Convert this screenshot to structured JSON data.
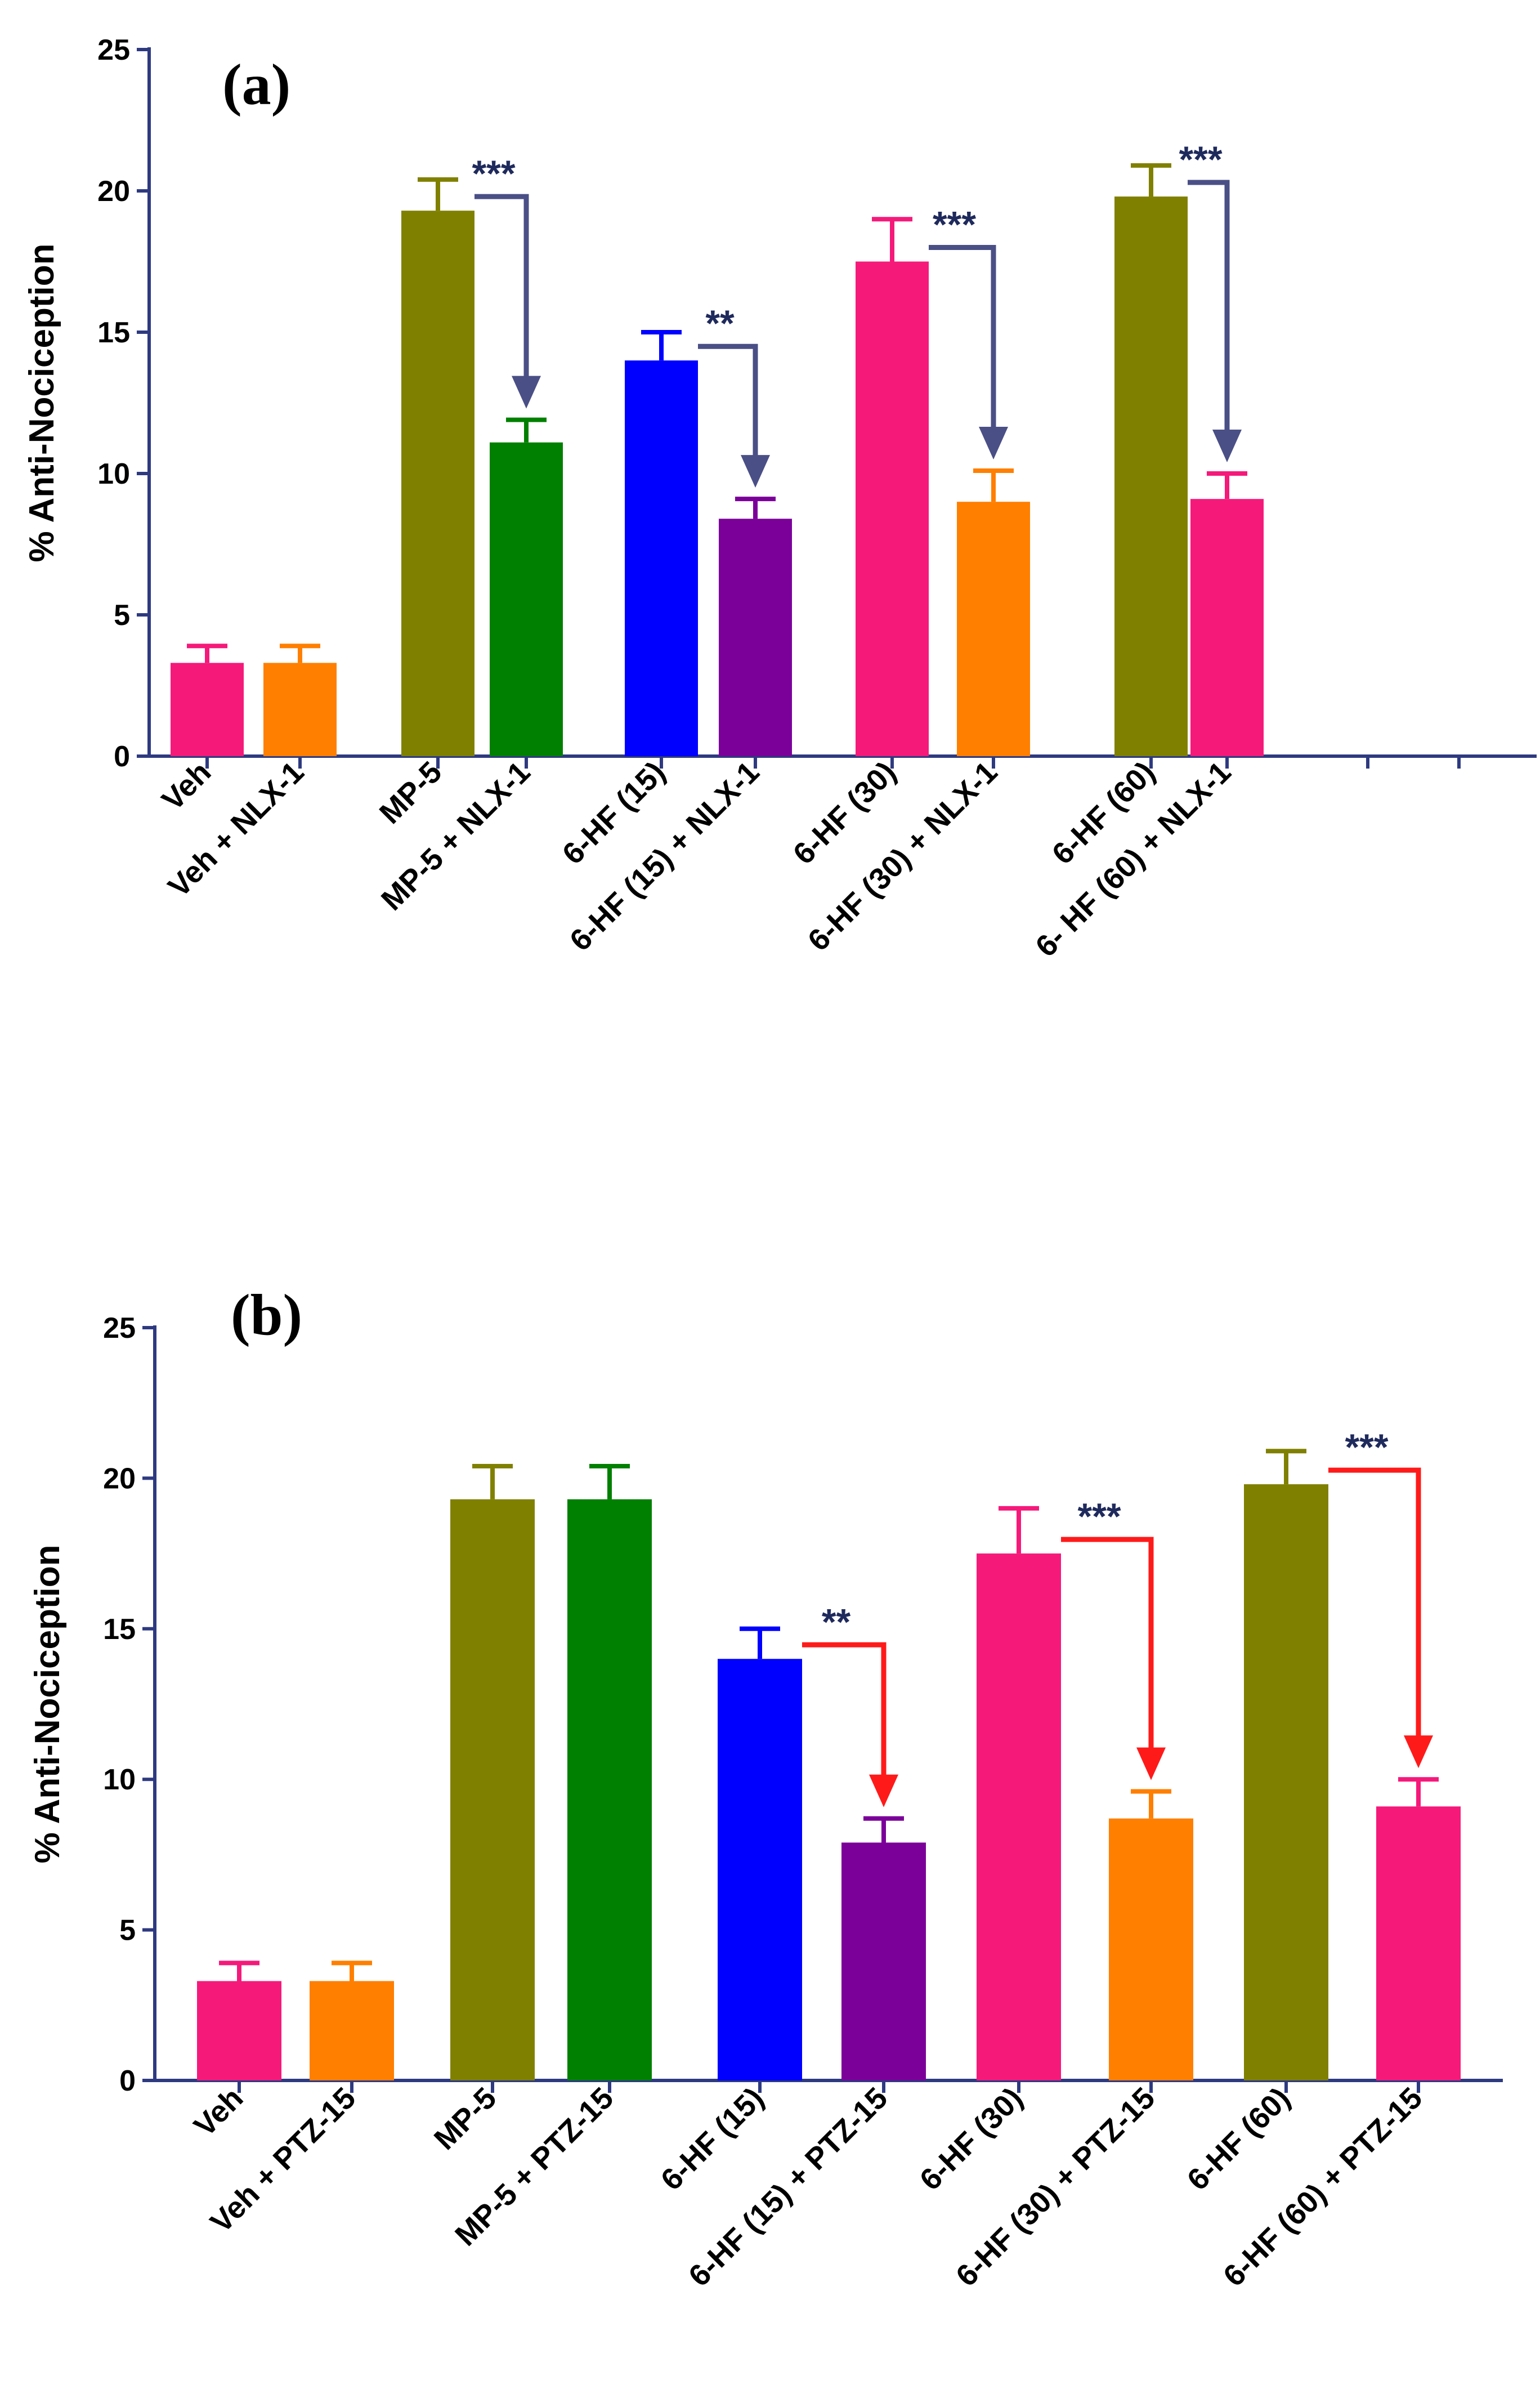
{
  "chart_data": [
    {
      "type": "bar",
      "panel_label": "(a)",
      "ylabel": "% Anti-Nociception",
      "xlabel": "",
      "ylim": [
        0,
        25
      ],
      "yticks": [
        "0",
        "5",
        "10",
        "15",
        "20",
        "25"
      ],
      "axis_color": "#2e3a80",
      "arrow_color": "#4a4f86",
      "sig_color": "#1f2a5c",
      "bars": [
        {
          "label": "Veh",
          "value": 3.3,
          "error": 0.6,
          "color": "#f5197a"
        },
        {
          "label": "Veh + NLX-1",
          "value": 3.3,
          "error": 0.6,
          "color": "#ff7f00"
        },
        {
          "label": "MP-5",
          "value": 19.3,
          "error": 1.1,
          "color": "#808000"
        },
        {
          "label": "MP-5 + NLX-1",
          "value": 11.1,
          "error": 0.8,
          "color": "#008000"
        },
        {
          "label": "6-HF (15)",
          "value": 14.0,
          "error": 1.0,
          "color": "#0000ff"
        },
        {
          "label": "6-HF (15) + NLX-1",
          "value": 8.4,
          "error": 0.7,
          "color": "#7b0099"
        },
        {
          "label": "6-HF (30)",
          "value": 17.5,
          "error": 1.5,
          "color": "#f5197a"
        },
        {
          "label": "6-HF (30) + NLX-1",
          "value": 9.0,
          "error": 1.1,
          "color": "#ff7f00"
        },
        {
          "label": "6-HF (60)",
          "value": 19.8,
          "error": 1.1,
          "color": "#808000"
        },
        {
          "label": "6- HF (60) + NLX-1",
          "value": 9.1,
          "error": 0.9,
          "color": "#f5197a"
        }
      ],
      "comparisons": [
        {
          "from": 2,
          "to": 3,
          "label": "***"
        },
        {
          "from": 4,
          "to": 5,
          "label": "**"
        },
        {
          "from": 6,
          "to": 7,
          "label": "***"
        },
        {
          "from": 8,
          "to": 9,
          "label": "***"
        }
      ]
    },
    {
      "type": "bar",
      "panel_label": "(b)",
      "ylabel": "% Anti-Nociception",
      "xlabel": "",
      "ylim": [
        0,
        25
      ],
      "yticks": [
        "0",
        "5",
        "10",
        "15",
        "20",
        "25"
      ],
      "axis_color": "#2e3a80",
      "arrow_color": "#ff1a1a",
      "sig_color": "#1f2a5c",
      "bars": [
        {
          "label": "Veh",
          "value": 3.3,
          "error": 0.6,
          "color": "#f5197a"
        },
        {
          "label": "Veh + PTZ-15",
          "value": 3.3,
          "error": 0.6,
          "color": "#ff7f00"
        },
        {
          "label": "MP-5",
          "value": 19.3,
          "error": 1.1,
          "color": "#808000"
        },
        {
          "label": "MP-5 + PTZ-15",
          "value": 19.3,
          "error": 1.1,
          "color": "#008000"
        },
        {
          "label": "6-HF (15)",
          "value": 14.0,
          "error": 1.0,
          "color": "#0000ff"
        },
        {
          "label": "6-HF (15) + PTZ-15",
          "value": 7.9,
          "error": 0.8,
          "color": "#7b0099"
        },
        {
          "label": "6-HF (30)",
          "value": 17.5,
          "error": 1.5,
          "color": "#f5197a"
        },
        {
          "label": "6-HF (30) + PTZ-15",
          "value": 8.7,
          "error": 0.9,
          "color": "#ff7f00"
        },
        {
          "label": "6-HF (60)",
          "value": 19.8,
          "error": 1.1,
          "color": "#808000"
        },
        {
          "label": "6-HF (60) + PTZ-15",
          "value": 9.1,
          "error": 0.9,
          "color": "#f5197a"
        }
      ],
      "comparisons": [
        {
          "from": 4,
          "to": 5,
          "label": "**"
        },
        {
          "from": 6,
          "to": 7,
          "label": "***"
        },
        {
          "from": 8,
          "to": 9,
          "label": "***"
        }
      ]
    }
  ]
}
